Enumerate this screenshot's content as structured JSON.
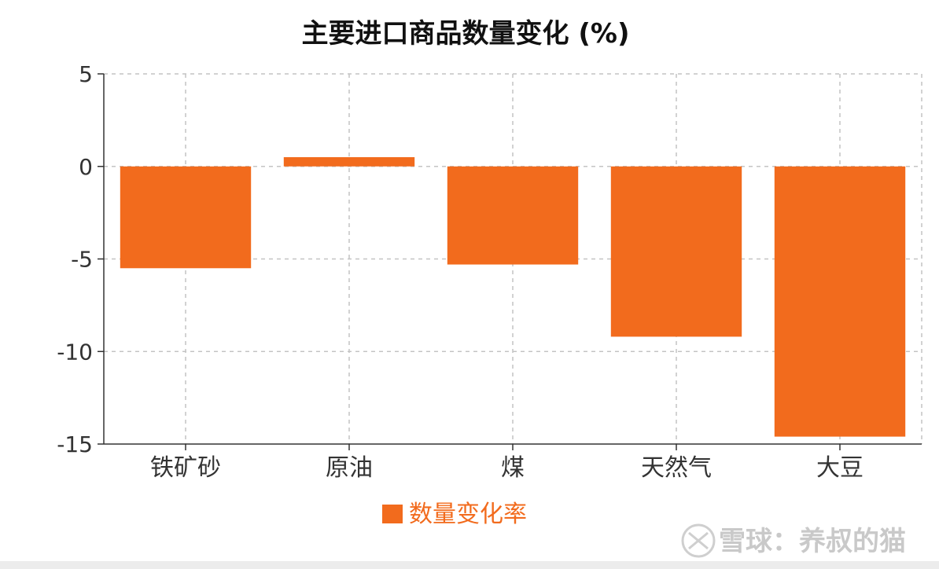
{
  "chart_data": {
    "type": "bar",
    "title": "主要进口商品数量变化 (%)",
    "categories": [
      "铁矿砂",
      "原油",
      "煤",
      "天然气",
      "大豆"
    ],
    "series": [
      {
        "name": "数量变化率",
        "values": [
          -5.5,
          0.5,
          -5.3,
          -9.2,
          -14.6
        ],
        "color": "#f26b1d"
      }
    ],
    "xlabel": "",
    "ylabel": "",
    "ylim": [
      -15,
      5
    ],
    "yticks": [
      "5",
      "0",
      "-5",
      "-10",
      "-15"
    ],
    "grid": true,
    "legend": "bottom-center"
  },
  "watermark": "雪球：养叔的猫"
}
